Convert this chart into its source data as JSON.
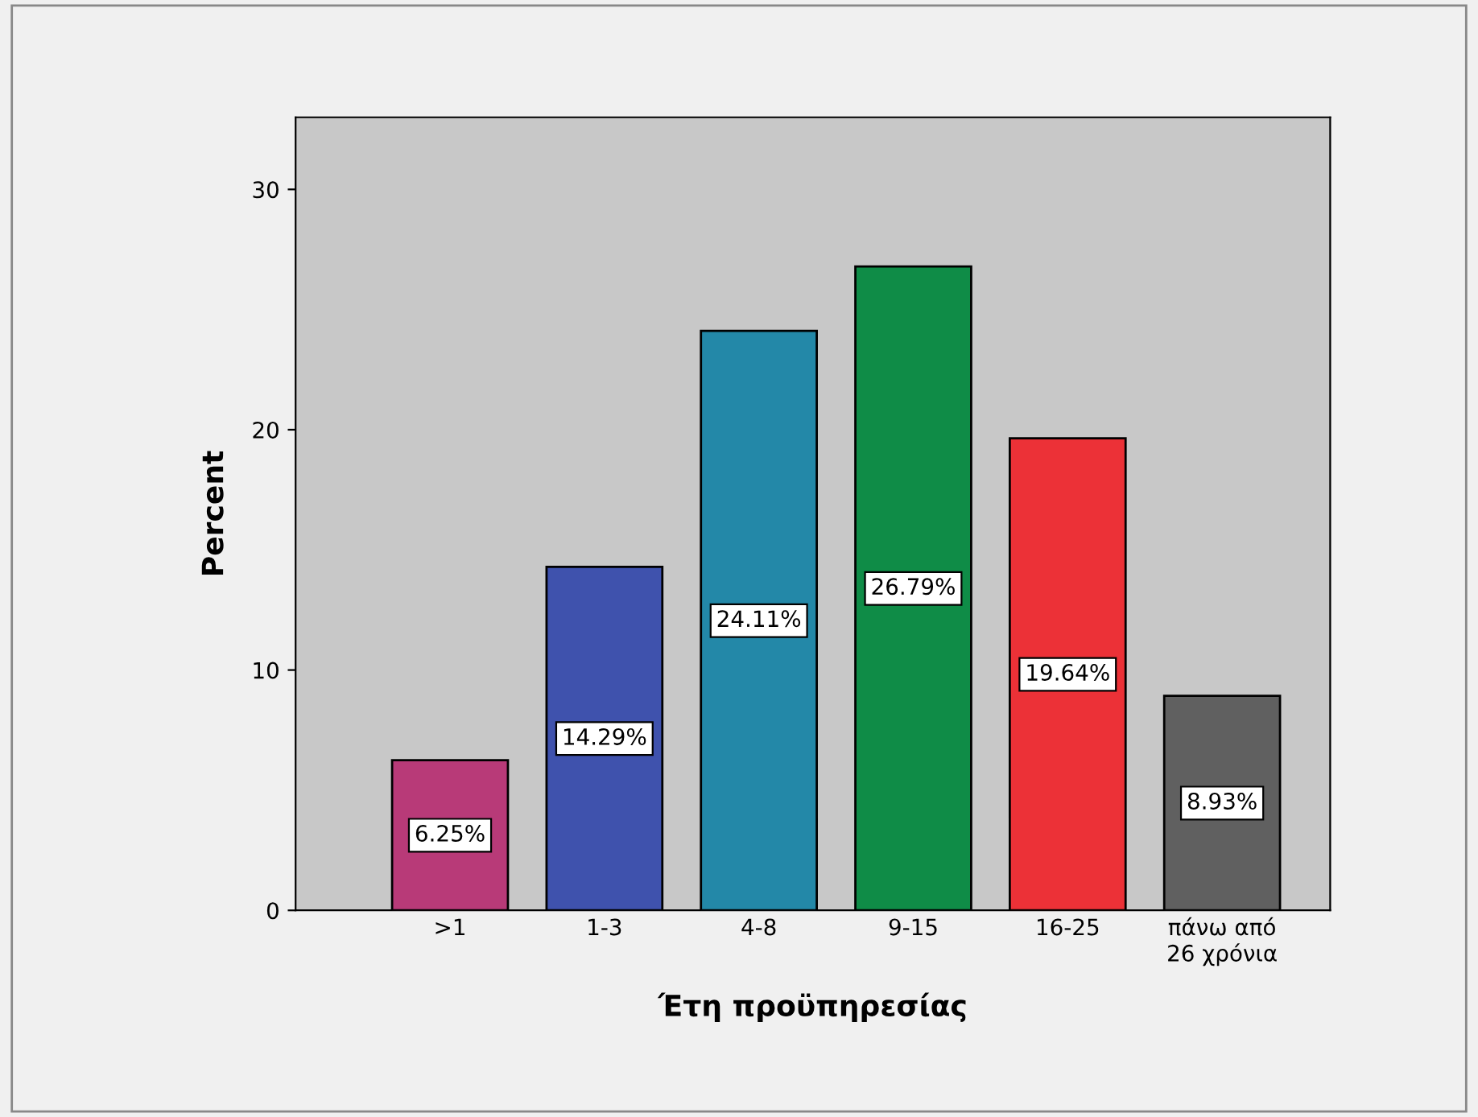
{
  "chart_data": {
    "type": "bar",
    "xlabel": "Έτη προϋπηρεσίας",
    "ylabel": "Percent",
    "categories": [
      ">1",
      "1-3",
      "4-8",
      "9-15",
      "16-25",
      "πάνω από\n26 χρόνια"
    ],
    "values": [
      6.25,
      14.29,
      24.11,
      26.79,
      19.64,
      8.93
    ],
    "colors": [
      "#b83a78",
      "#3f52ad",
      "#2388a8",
      "#0f8c47",
      "#ec3137",
      "#606060"
    ],
    "value_labels": [
      "6.25%",
      "14.29%",
      "24.11%",
      "26.79%",
      "19.64%",
      "8.93%"
    ],
    "ylim": [
      0,
      33
    ],
    "yticks": [
      0,
      10,
      20,
      30
    ],
    "grid": false
  }
}
